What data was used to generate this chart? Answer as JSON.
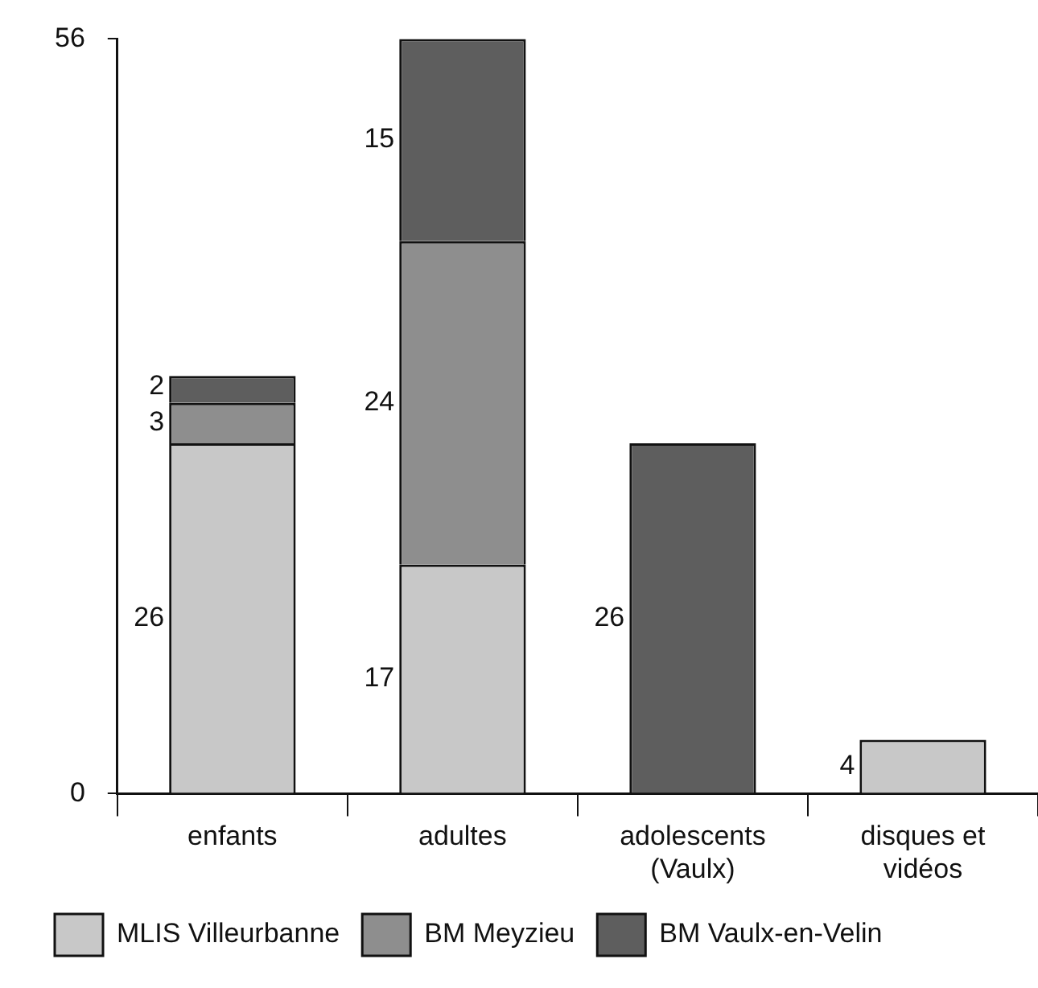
{
  "chart_data": {
    "type": "bar",
    "stacked": true,
    "categories": [
      "enfants",
      "adultes",
      "adolescents (Vaulx)",
      "disques et vidéos"
    ],
    "series": [
      {
        "name": "MLIS Villeurbanne",
        "color": "#c8c8c8",
        "values": [
          26,
          17,
          null,
          4
        ]
      },
      {
        "name": "BM Meyzieu",
        "color": "#8e8e8e",
        "values": [
          3,
          24,
          null,
          null
        ]
      },
      {
        "name": "BM Vaulx-en-Velin",
        "color": "#5e5e5e",
        "values": [
          2,
          15,
          26,
          null
        ]
      }
    ],
    "ylim": [
      0,
      56
    ],
    "yticks": [
      0,
      56
    ],
    "grid": false,
    "legend": "bottom",
    "data_labels": true
  }
}
